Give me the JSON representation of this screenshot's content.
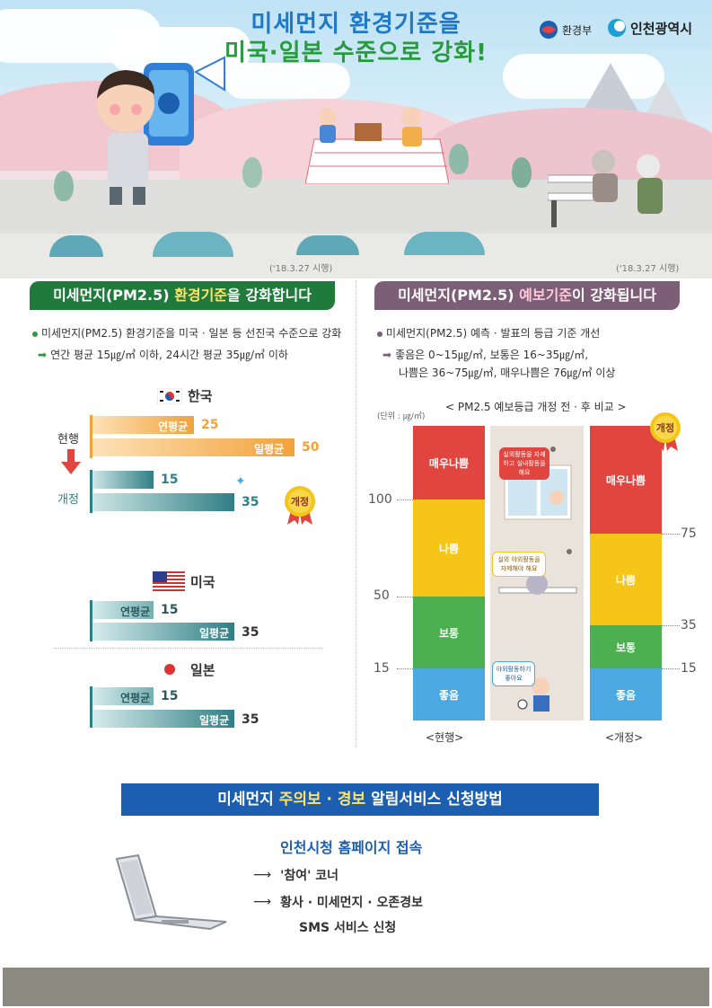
{
  "hero": {
    "title_line1": "미세먼지 환경기준을",
    "title_line2": "미국·일본 수준으로 강화!",
    "logo_moe": "환경부",
    "logo_incheon": "인천광역시",
    "effective_left": "('18.3.27 시행)",
    "effective_right": "('18.3.27 시행)"
  },
  "left_section": {
    "header_part1": "미세먼지(PM2.5) ",
    "header_highlight": "환경기준",
    "header_part2": "을 강화합니다",
    "bullet": "미세먼지(PM2.5) 환경기준을 미국 · 일본 등 선진국 수준으로 강화",
    "sub_bullet": "연간 평균 15㎍/㎥ 이하, 24시간 평균 35㎍/㎥ 이하",
    "korea_label": "한국",
    "current_label": "현행",
    "revised_label": "개정",
    "annual_label": "연평균",
    "daily_label": "일평균",
    "badge": "개정",
    "korea_current_annual": "25",
    "korea_current_daily": "50",
    "korea_revised_annual": "15",
    "korea_revised_daily": "35",
    "usa_label": "미국",
    "usa_annual": "15",
    "usa_daily": "35",
    "japan_label": "일본",
    "japan_annual": "15",
    "japan_daily": "35",
    "colors": {
      "orange": "#f2a23a",
      "teal": "#2f7f86",
      "green": "#2a9a3e"
    }
  },
  "right_section": {
    "header_part1": "미세먼지(PM2.5) ",
    "header_highlight": "예보기준",
    "header_part2": "이 강화됩니다",
    "bullet": "미세먼지(PM2.5) 예측 · 발표의 등급 기준 개선",
    "sub_bullet1": "좋음은 0~15㎍/㎥, 보통은 16~35㎍/㎥,",
    "sub_bullet2": "나쁨은 36~75㎍/㎥, 매우나쁨은 76㎍/㎥ 이상",
    "chart_title": "< PM2.5 예보등급 개정 전 · 후 비교 >",
    "unit": "(단위 : ㎍/㎥)",
    "grades": [
      "매우나쁨",
      "나쁨",
      "보통",
      "좋음"
    ],
    "badge": "개정",
    "current_caption": "<현행>",
    "revised_caption": "<개정>",
    "bubble1": "실외활동을 자제하고 실내활동을 해요",
    "bubble2": "실외 야외활동을 자제해야 해요",
    "bubble3": "야외활동하기 좋아요",
    "left_ticks": [
      "100",
      "50",
      "15"
    ],
    "right_ticks": [
      "75",
      "35",
      "15"
    ],
    "colors": {
      "very_bad": "#e0453f",
      "bad": "#f5c518",
      "normal": "#4caf50",
      "good": "#4ba8e0"
    }
  },
  "chart_data": [
    {
      "type": "bar",
      "categories": [
        "현행 연평균",
        "현행 일평균",
        "개정 연평균",
        "개정 일평균"
      ],
      "values": [
        25,
        50,
        15,
        35
      ],
      "title": "한국",
      "xlabel": "",
      "ylabel": ""
    },
    {
      "type": "bar",
      "categories": [
        "연평균",
        "일평균"
      ],
      "values": [
        15,
        35
      ],
      "title": "미국",
      "xlabel": "",
      "ylabel": ""
    },
    {
      "type": "bar",
      "categories": [
        "연평균",
        "일평균"
      ],
      "values": [
        15,
        35
      ],
      "title": "일본",
      "xlabel": "",
      "ylabel": ""
    },
    {
      "type": "table",
      "title": "< PM2.5 예보등급 개정 전 · 후 비교 >",
      "categories": [
        "좋음",
        "보통",
        "나쁨",
        "매우나쁨"
      ],
      "series": [
        {
          "name": "현행",
          "upper_bounds": [
            15,
            50,
            100,
            null
          ]
        },
        {
          "name": "개정",
          "upper_bounds": [
            15,
            35,
            75,
            null
          ]
        }
      ],
      "ylabel": "(단위 : ㎍/㎥)"
    }
  ],
  "apply": {
    "header_part1": "미세먼지 ",
    "header_highlight": "주의보 · 경보",
    "header_part2": " 알림서비스 신청방법",
    "site": "인천시청 홈페이지 접속",
    "step1": "'참여' 코너",
    "step2": "황사 · 미세먼지 · 오존경보",
    "step3": "SMS 서비스 신청"
  }
}
